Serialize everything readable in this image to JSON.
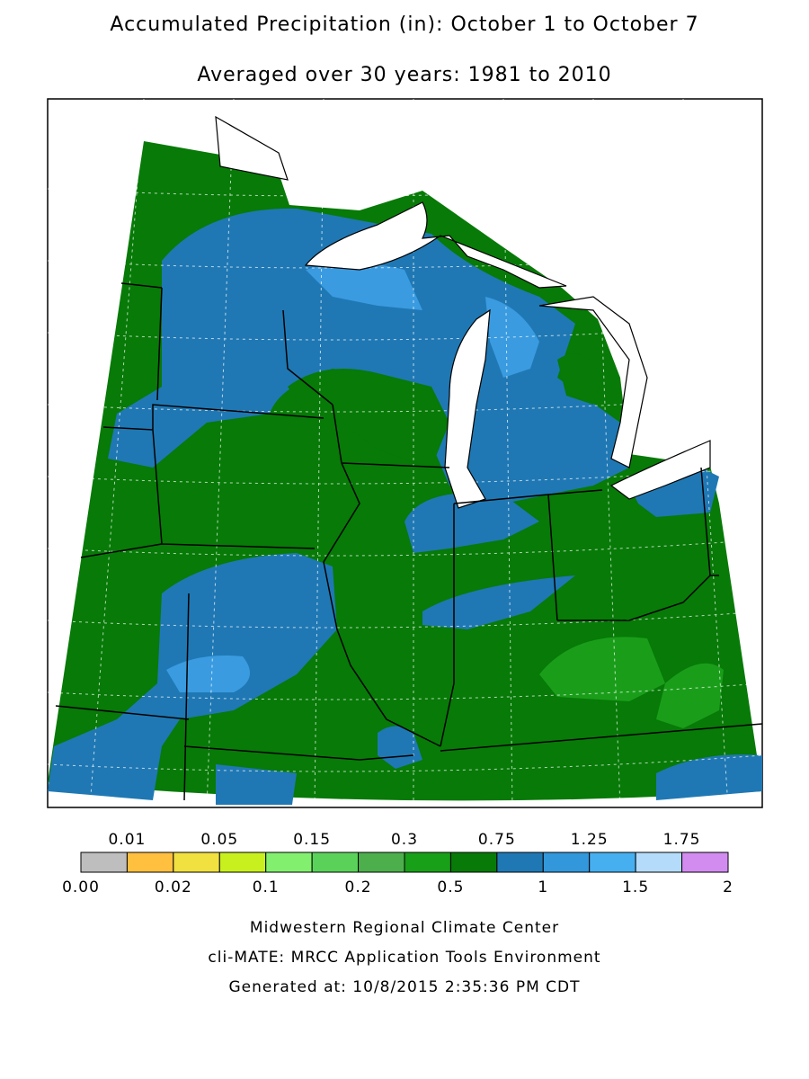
{
  "header": {
    "title": "Accumulated Precipitation (in): October 1 to October 7",
    "subtitle": "Averaged over 30 years: 1981 to 2010"
  },
  "legend": {
    "colors": [
      "#bebebe",
      "#ffbf3f",
      "#f0e040",
      "#c8f01e",
      "#82f06e",
      "#5ad25a",
      "#4caf4c",
      "#18a018",
      "#077a07",
      "#1f78b4",
      "#3297db",
      "#46aff0",
      "#b4dcfa",
      "#d28cf0"
    ],
    "labels": [
      "0.00",
      "0.01",
      "0.02",
      "0.05",
      "0.1",
      "0.15",
      "0.2",
      "0.3",
      "0.5",
      "0.75",
      "1",
      "1.25",
      "1.5",
      "1.75",
      "2"
    ]
  },
  "footer": {
    "lines": [
      "Midwestern Regional Climate Center",
      "cli-MATE: MRCC Application Tools Environment",
      "Generated at: 10/8/2015 2:35:36 PM CDT"
    ]
  }
}
